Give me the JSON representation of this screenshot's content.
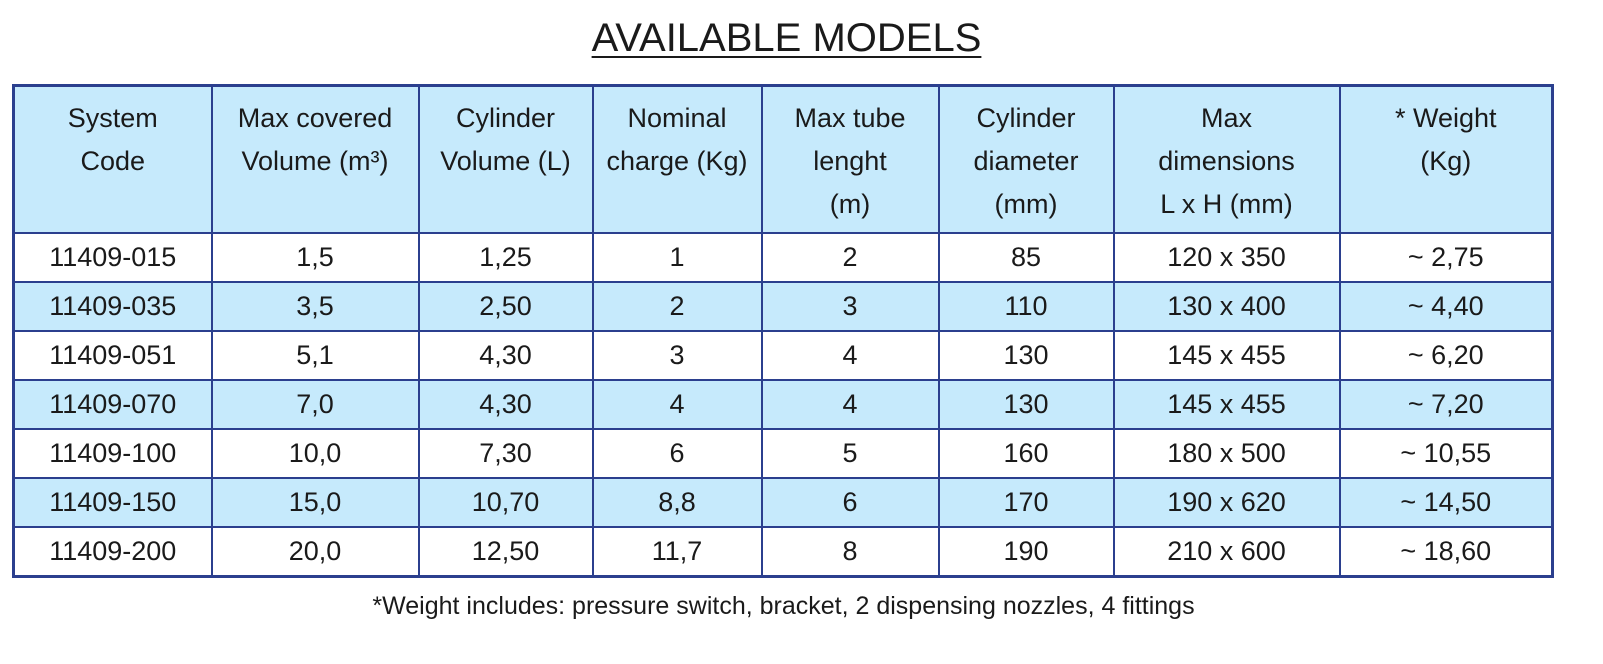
{
  "title": "AVAILABLE MODELS",
  "table": {
    "header": [
      [
        "System",
        "Code"
      ],
      [
        "Max covered",
        "Volume (m³)"
      ],
      [
        "Cylinder",
        "Volume (L)"
      ],
      [
        "Nominal",
        "charge (Kg)"
      ],
      [
        "Max tube",
        "lenght",
        "(m)"
      ],
      [
        "Cylinder",
        "diameter",
        "(mm)"
      ],
      [
        "Max",
        "dimensions",
        "L x H (mm)"
      ],
      [
        "* Weight",
        "(Kg)"
      ]
    ],
    "rows": [
      [
        "11409-015",
        "1,5",
        "1,25",
        "1",
        "2",
        "85",
        "120 x 350",
        "~ 2,75"
      ],
      [
        "11409-035",
        "3,5",
        "2,50",
        "2",
        "3",
        "110",
        "130 x 400",
        "~ 4,40"
      ],
      [
        "11409-051",
        "5,1",
        "4,30",
        "3",
        "4",
        "130",
        "145 x 455",
        "~ 6,20"
      ],
      [
        "11409-070",
        "7,0",
        "4,30",
        "4",
        "4",
        "130",
        "145 x 455",
        "~ 7,20"
      ],
      [
        "11409-100",
        "10,0",
        "7,30",
        "6",
        "5",
        "160",
        "180 x 500",
        "~ 10,55"
      ],
      [
        "11409-150",
        "15,0",
        "10,70",
        "8,8",
        "6",
        "170",
        "190 x 620",
        "~ 14,50"
      ],
      [
        "11409-200",
        "20,0",
        "12,50",
        "11,7",
        "8",
        "190",
        "210 x 600",
        "~ 18,60"
      ]
    ]
  },
  "footnote": "*Weight includes: pressure switch, bracket, 2 dispensing nozzles, 4 fittings"
}
